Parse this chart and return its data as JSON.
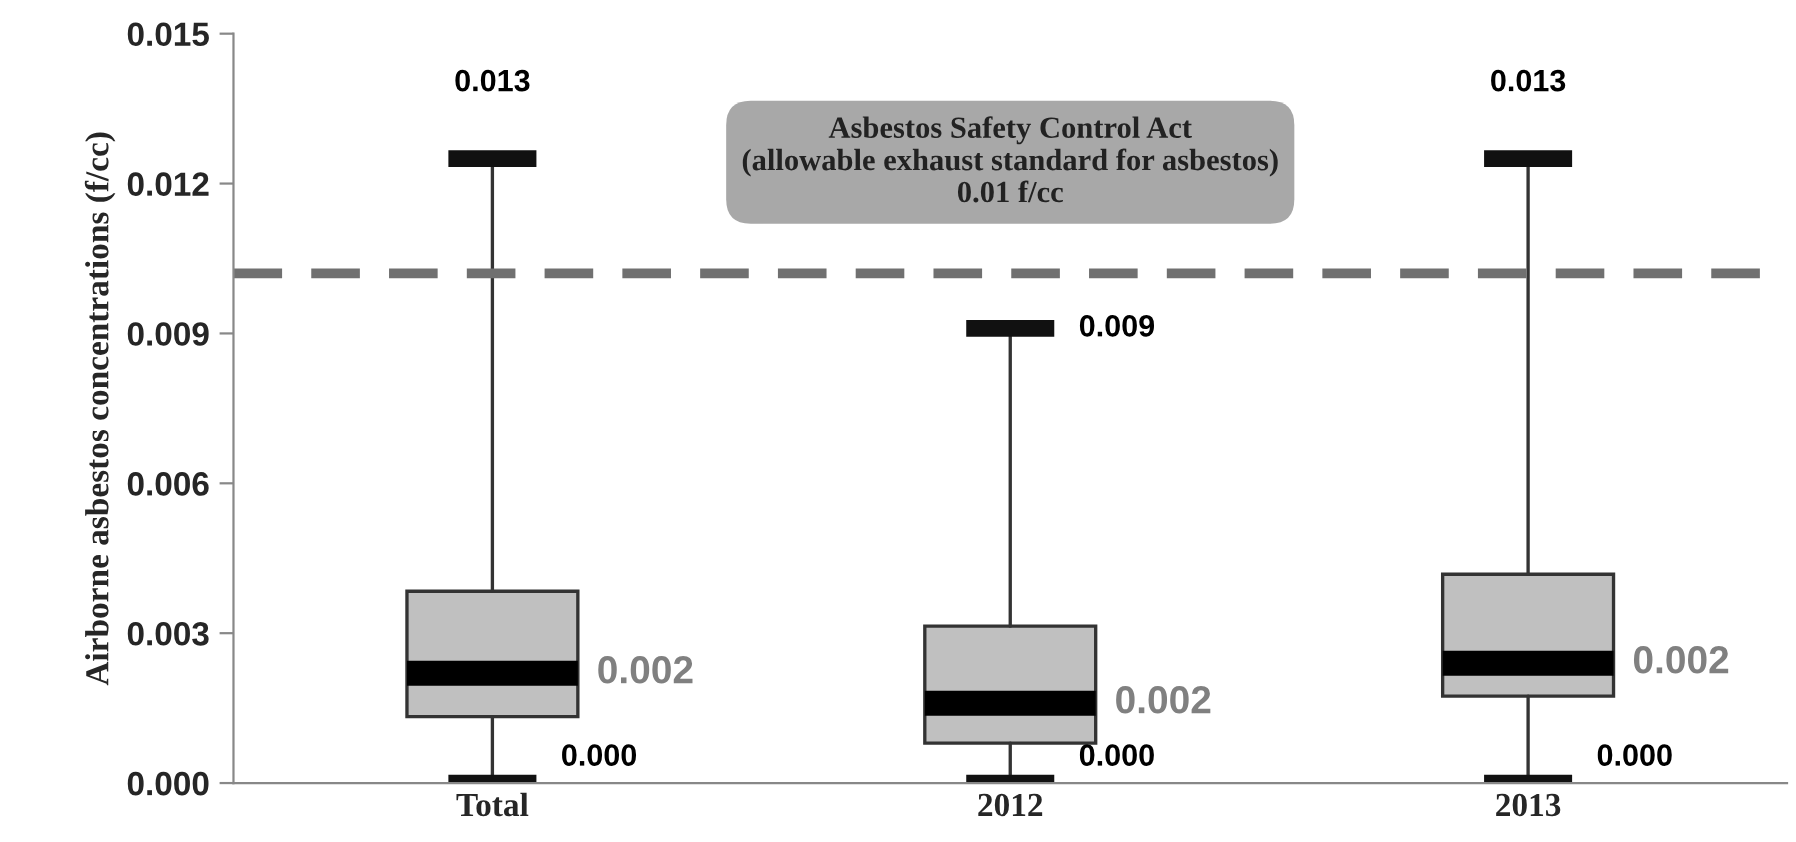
{
  "chart_data": {
    "type": "box",
    "ylabel": "Airborne asbestos concentrations (f/cc)",
    "categories": [
      "Total",
      "2012",
      "2013"
    ],
    "boxes": [
      {
        "low": 0,
        "q1": 0.00133,
        "median": 0.0022,
        "q3": 0.00384,
        "high": 0.0125
      },
      {
        "low": 0,
        "q1": 0.0008,
        "median": 0.0016,
        "q3": 0.00314,
        "high": 0.0091
      },
      {
        "low": 0,
        "q1": 0.00174,
        "median": 0.0024,
        "q3": 0.00418,
        "high": 0.0125
      }
    ],
    "color": "#c0c0c0",
    "ylim": [
      0,
      0.015
    ],
    "yticks": [
      {
        "value": 0,
        "label": "0.000"
      },
      {
        "value": 0.003,
        "label": "0.003"
      },
      {
        "value": 0.006,
        "label": "0.006"
      },
      {
        "value": 0.009,
        "label": "0.009"
      },
      {
        "value": 0.012,
        "label": "0.012"
      },
      {
        "value": 0.015,
        "label": "0.015"
      }
    ],
    "grid": false,
    "ref_lines": [
      {
        "axis": "y",
        "value": 0.0102,
        "label": "Asbestos Safety Control Act\n(allowable exhaust standard for asbestos)\n0.01 f/cc",
        "color": "#707070",
        "line_style": "dashed"
      }
    ],
    "annotations": [
      {
        "text": "0.013",
        "x": "Total",
        "y": 0.0125
      },
      {
        "text": "0.002",
        "x": "Total",
        "y": 0.0022
      },
      {
        "text": "0.000",
        "x": "Total",
        "y": 0
      },
      {
        "text": "0.009",
        "x": "2012",
        "y": 0.0091
      },
      {
        "text": "0.002",
        "x": "2012",
        "y": 0.0016
      },
      {
        "text": "0.000",
        "x": "2012",
        "y": 0
      },
      {
        "text": "0.013",
        "x": "2013",
        "y": 0.0125
      },
      {
        "text": "0.002",
        "x": "2013",
        "y": 0.0024
      },
      {
        "text": "0.000",
        "x": "2013",
        "y": 0
      }
    ]
  }
}
